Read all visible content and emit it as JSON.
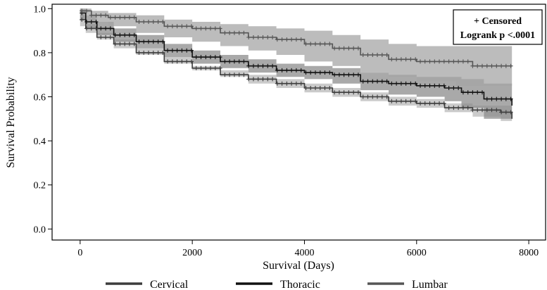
{
  "chart_data": {
    "type": "line",
    "title": "",
    "xlabel": "Survival (Days)",
    "ylabel": "Survival Probability",
    "xlim": [
      -500,
      8300
    ],
    "ylim": [
      -0.05,
      1.02
    ],
    "xticks": [
      0,
      2000,
      4000,
      6000,
      8000
    ],
    "xtick_labels": [
      "0",
      "2000",
      "4000",
      "6000",
      "8000"
    ],
    "yticks": [
      0.0,
      0.2,
      0.4,
      0.6,
      0.8,
      1.0
    ],
    "ytick_labels": [
      "0.0",
      "0.2",
      "0.4",
      "0.6",
      "0.8",
      "1.0"
    ],
    "annotation": {
      "line1": "+ Censored",
      "line2": "Logrank p <.0001"
    },
    "legend_position": "bottom",
    "series": [
      {
        "name": "Cervical",
        "color": "#3c3c3c",
        "band_color": "#b9b9b9",
        "x": [
          0,
          100,
          300,
          600,
          1000,
          1500,
          2000,
          2500,
          3000,
          3500,
          4000,
          4500,
          5000,
          5500,
          6000,
          6500,
          7000,
          7500,
          7700
        ],
        "y": [
          0.95,
          0.91,
          0.87,
          0.84,
          0.8,
          0.76,
          0.73,
          0.7,
          0.68,
          0.66,
          0.64,
          0.62,
          0.6,
          0.58,
          0.57,
          0.55,
          0.54,
          0.53,
          0.5
        ],
        "lower": [
          0.92,
          0.89,
          0.86,
          0.82,
          0.79,
          0.75,
          0.72,
          0.69,
          0.66,
          0.64,
          0.62,
          0.6,
          0.58,
          0.56,
          0.55,
          0.53,
          0.51,
          0.49,
          0.48
        ],
        "upper": [
          0.97,
          0.93,
          0.89,
          0.86,
          0.82,
          0.78,
          0.74,
          0.72,
          0.7,
          0.68,
          0.66,
          0.64,
          0.62,
          0.6,
          0.59,
          0.57,
          0.56,
          0.56,
          0.53
        ]
      },
      {
        "name": "Thoracic",
        "color": "#111111",
        "band_color": "#8c8c8c",
        "x": [
          0,
          100,
          300,
          600,
          1000,
          1500,
          2000,
          2500,
          3000,
          3500,
          4000,
          4500,
          5000,
          5500,
          6000,
          6500,
          6800,
          7200,
          7700
        ],
        "y": [
          0.98,
          0.94,
          0.91,
          0.88,
          0.85,
          0.81,
          0.78,
          0.76,
          0.74,
          0.72,
          0.71,
          0.7,
          0.67,
          0.66,
          0.65,
          0.64,
          0.62,
          0.59,
          0.56
        ],
        "lower": [
          0.95,
          0.91,
          0.88,
          0.85,
          0.82,
          0.78,
          0.75,
          0.73,
          0.71,
          0.69,
          0.68,
          0.66,
          0.63,
          0.61,
          0.6,
          0.58,
          0.55,
          0.5,
          0.48
        ],
        "upper": [
          1.0,
          0.97,
          0.94,
          0.91,
          0.88,
          0.84,
          0.81,
          0.79,
          0.77,
          0.75,
          0.74,
          0.73,
          0.71,
          0.7,
          0.69,
          0.69,
          0.68,
          0.66,
          0.64
        ]
      },
      {
        "name": "Lumbar",
        "color": "#555555",
        "band_color": "#a5a5a5",
        "x": [
          0,
          200,
          500,
          1000,
          1500,
          2000,
          2500,
          3000,
          3500,
          4000,
          4500,
          5000,
          5500,
          6000,
          6700,
          7000,
          7700
        ],
        "y": [
          0.99,
          0.97,
          0.96,
          0.94,
          0.92,
          0.91,
          0.89,
          0.87,
          0.86,
          0.84,
          0.82,
          0.79,
          0.77,
          0.76,
          0.76,
          0.74,
          0.74
        ],
        "lower": [
          0.97,
          0.94,
          0.92,
          0.89,
          0.87,
          0.85,
          0.83,
          0.81,
          0.79,
          0.76,
          0.74,
          0.71,
          0.69,
          0.67,
          0.65,
          0.65,
          0.65
        ],
        "upper": [
          1.0,
          0.99,
          0.98,
          0.97,
          0.95,
          0.94,
          0.93,
          0.92,
          0.91,
          0.9,
          0.88,
          0.86,
          0.84,
          0.83,
          0.83,
          0.83,
          0.83
        ]
      }
    ]
  }
}
